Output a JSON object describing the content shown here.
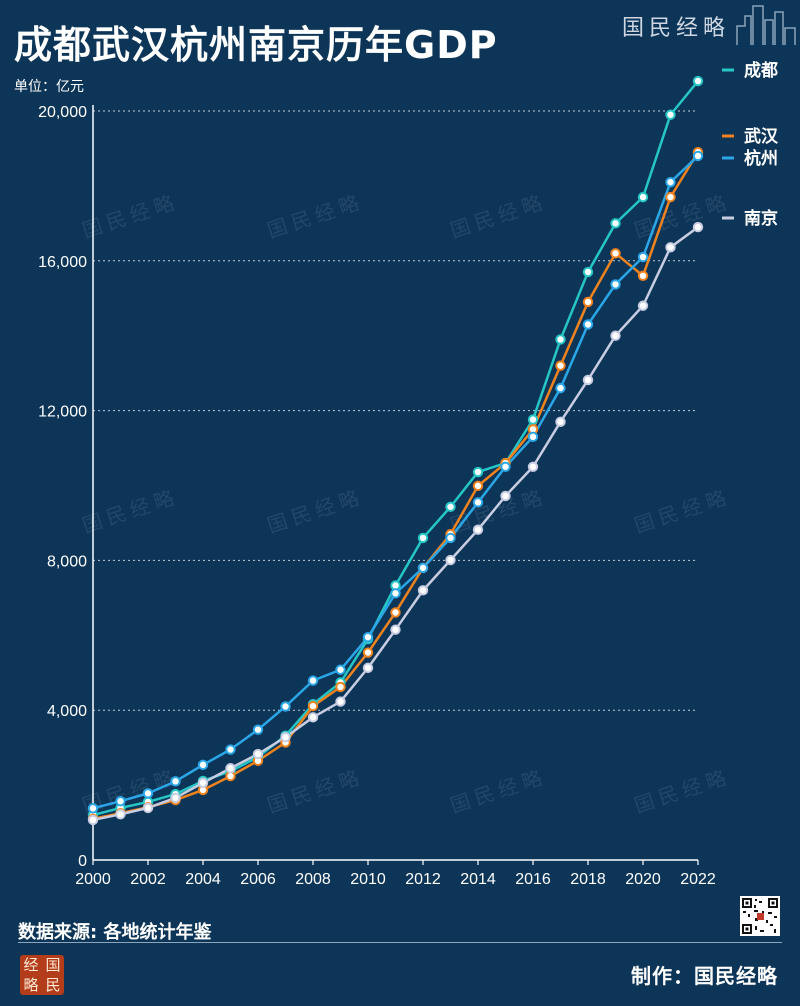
{
  "header": {
    "title": "成都武汉杭州南京历年GDP",
    "brand": "国民经略",
    "unit_label": "单位：亿元"
  },
  "footer": {
    "source": "数据来源: 各地统计年鉴",
    "credit": "制作：国民经略",
    "logo_chars": [
      "经",
      "国",
      "略",
      "民"
    ]
  },
  "watermark_text": "国民经略",
  "chart_data": {
    "type": "line",
    "title": "成都武汉杭州南京历年GDP",
    "ylabel": "单位：亿元",
    "xlabel": "",
    "x": [
      2000,
      2001,
      2002,
      2003,
      2004,
      2005,
      2006,
      2007,
      2008,
      2009,
      2010,
      2011,
      2012,
      2013,
      2014,
      2015,
      2016,
      2017,
      2018,
      2019,
      2020,
      2021,
      2022
    ],
    "xlim": [
      2000,
      2022
    ],
    "ylim": [
      0,
      20000
    ],
    "x_ticks": [
      "2000",
      "2002",
      "2004",
      "2006",
      "2008",
      "2010",
      "2012",
      "2014",
      "2016",
      "2018",
      "2020",
      "2022"
    ],
    "y_ticks": [
      "0",
      "4,000",
      "8,000",
      "12,000",
      "16,000",
      "20,000"
    ],
    "y_tick_values": [
      0,
      4000,
      8000,
      12000,
      16000,
      20000
    ],
    "grid": "horizontal dashed",
    "legend_placement": "right, at line ends",
    "series": [
      {
        "name": "成都",
        "color": "#26c6c6",
        "values": [
          1200,
          1390,
          1550,
          1760,
          2110,
          2370,
          2750,
          3320,
          4160,
          4740,
          5900,
          7330,
          8600,
          9430,
          10360,
          10600,
          11760,
          13900,
          15700,
          17000,
          17700,
          19900,
          20800
        ]
      },
      {
        "name": "武汉",
        "color": "#f0831e",
        "values": [
          1100,
          1250,
          1410,
          1600,
          1870,
          2240,
          2650,
          3140,
          4110,
          4620,
          5540,
          6610,
          7800,
          8700,
          9990,
          10600,
          11500,
          13200,
          14900,
          16200,
          15600,
          17700,
          18900
        ]
      },
      {
        "name": "杭州",
        "color": "#2ba7e8",
        "values": [
          1380,
          1570,
          1780,
          2100,
          2540,
          2950,
          3480,
          4100,
          4790,
          5080,
          5950,
          7120,
          7800,
          8600,
          9550,
          10500,
          11300,
          12600,
          14300,
          15370,
          16100,
          18100,
          18800
        ]
      },
      {
        "name": "南京",
        "color": "#c9cde2",
        "values": [
          1070,
          1220,
          1390,
          1660,
          2060,
          2450,
          2830,
          3280,
          3810,
          4230,
          5130,
          6150,
          7200,
          8010,
          8820,
          9720,
          10500,
          11700,
          12820,
          14000,
          14800,
          16360,
          16900
        ]
      }
    ]
  }
}
